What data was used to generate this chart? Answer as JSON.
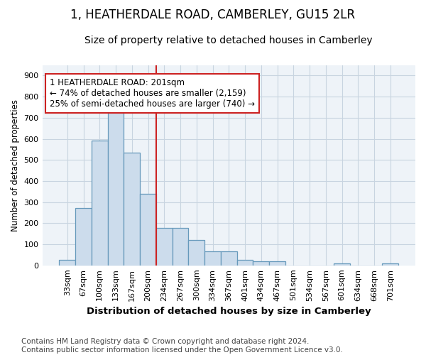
{
  "title": "1, HEATHERDALE ROAD, CAMBERLEY, GU15 2LR",
  "subtitle": "Size of property relative to detached houses in Camberley",
  "xlabel": "Distribution of detached houses by size in Camberley",
  "ylabel": "Number of detached properties",
  "categories": [
    "33sqm",
    "67sqm",
    "100sqm",
    "133sqm",
    "167sqm",
    "200sqm",
    "234sqm",
    "267sqm",
    "300sqm",
    "334sqm",
    "367sqm",
    "401sqm",
    "434sqm",
    "467sqm",
    "501sqm",
    "534sqm",
    "567sqm",
    "601sqm",
    "634sqm",
    "668sqm",
    "701sqm"
  ],
  "values": [
    25,
    272,
    592,
    738,
    535,
    338,
    178,
    178,
    120,
    68,
    68,
    25,
    18,
    18,
    0,
    0,
    0,
    8,
    0,
    0,
    8
  ],
  "bar_color": "#ccdcec",
  "bar_edge_color": "#6699bb",
  "grid_color": "#c8d4e0",
  "background_color": "#ffffff",
  "plot_bg_color": "#eef3f8",
  "vline_x": 5.5,
  "vline_color": "#cc2222",
  "annotation_text": "1 HEATHERDALE ROAD: 201sqm\n← 74% of detached houses are smaller (2,159)\n25% of semi-detached houses are larger (740) →",
  "annotation_box_color": "#ffffff",
  "annotation_box_edge": "#cc2222",
  "ylim": [
    0,
    950
  ],
  "yticks": [
    0,
    100,
    200,
    300,
    400,
    500,
    600,
    700,
    800,
    900
  ],
  "footnote": "Contains HM Land Registry data © Crown copyright and database right 2024.\nContains public sector information licensed under the Open Government Licence v3.0.",
  "title_fontsize": 12,
  "subtitle_fontsize": 10,
  "xlabel_fontsize": 9.5,
  "ylabel_fontsize": 8.5,
  "tick_fontsize": 8,
  "annotation_fontsize": 8.5,
  "footnote_fontsize": 7.5
}
